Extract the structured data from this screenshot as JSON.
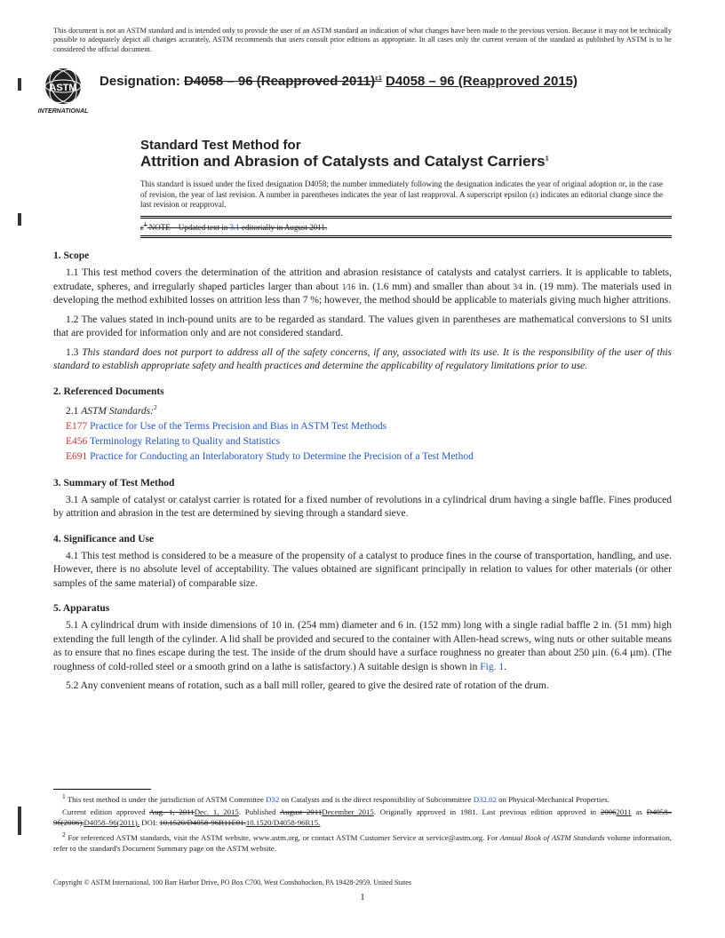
{
  "disclaimer": "This document is not an ASTM standard and is intended only to provide the user of an ASTM standard an indication of what changes have been made to the previous version. Because it may not be technically possible to adequately depict all changes accurately, ASTM recommends that users consult prior editions as appropriate. In all cases only the current version of the standard as published by ASTM is to be considered the official document.",
  "logo_text": "INTERNATIONAL",
  "designation_label": "Designation:",
  "designation_old": "D4058 – 96 (Reapproved 2011)",
  "designation_old_sup": "ε1",
  "designation_new": "D4058 – 96 (Reapproved 2015)",
  "title_pre": "Standard Test Method for",
  "title_main": "Attrition and Abrasion of Catalysts and Catalyst Carriers",
  "title_sup": "1",
  "issue_note": "This standard is issued under the fixed designation D4058; the number immediately following the designation indicates the year of original adoption or, in the case of revision, the year of last revision. A number in parentheses indicates the year of last reapproval. A superscript epsilon (ε) indicates an editorial change since the last revision or reapproval.",
  "editorial_note_pre": "ε",
  "editorial_note_sup": "1",
  "editorial_note_a": " NOTE—Updated text in ",
  "editorial_note_link": "3.1",
  "editorial_note_b": " editorially in August 2011.",
  "sections": {
    "scope": {
      "head": "1. Scope"
    },
    "refdocs": {
      "head": "2. Referenced Documents"
    },
    "summary": {
      "head": "3. Summary of Test Method"
    },
    "sig": {
      "head": "4. Significance and Use"
    },
    "app": {
      "head": "5. Apparatus"
    }
  },
  "p11a": "1.1 This test method covers the determination of the attrition and abrasion resistance of catalysts and catalyst carriers. It is applicable to tablets, extrudate, spheres, and irregularly shaped particles larger than about ",
  "p11_frac1": "1⁄16",
  "p11b": " in. (1.6 mm) and smaller than about ",
  "p11_frac2": "3⁄4",
  "p11c": " in. (19 mm). The materials used in developing the method exhibited losses on attrition less than 7 %; however, the method should be applicable to materials giving much higher attritions.",
  "p12": "1.2 The values stated in inch-pound units are to be regarded as standard. The values given in parentheses are mathematical conversions to SI units that are provided for information only and are not considered standard.",
  "p13": "1.3 This standard does not purport to address all of the safety concerns, if any, associated with its use. It is the responsibility of the user of this standard to establish appropriate safety and health practices and determine the applicability of regulatory limitations prior to use.",
  "p21_label": "2.1 ",
  "p21_italic": "ASTM Standards:",
  "p21_sup": "2",
  "refs": [
    {
      "code": "E177",
      "title": "Practice for Use of the Terms Precision and Bias in ASTM Test Methods"
    },
    {
      "code": "E456",
      "title": "Terminology Relating to Quality and Statistics"
    },
    {
      "code": "E691",
      "title": "Practice for Conducting an Interlaboratory Study to Determine the Precision of a Test Method"
    }
  ],
  "p31": "3.1 A sample of catalyst or catalyst carrier is rotated for a fixed number of revolutions in a cylindrical drum having a single baffle. Fines produced by attrition and abrasion in the test are determined by sieving through a standard sieve.",
  "p41": "4.1 This test method is considered to be a measure of the propensity of a catalyst to produce fines in the course of transportation, handling, and use. However, there is no absolute level of acceptability. The values obtained are significant principally in relation to values for other materials (or other samples of the same material) of comparable size.",
  "p51a": "5.1 A cylindrical drum with inside dimensions of 10 in. (254 mm) diameter and 6 in. (152 mm) long with a single radial baffle 2 in. (51 mm) high extending the full length of the cylinder. A lid shall be provided and secured to the container with Allen-head screws, wing nuts or other suitable means as to ensure that no fines escape during the test. The inside of the drum should have a surface roughness no greater than about 250 µin. (6.4 µm). (The roughness of cold-rolled steel or a smooth grind on a lathe is satisfactory.) A suitable design is shown in ",
  "p51_fig": "Fig. 1",
  "p51b": ".",
  "p52": "5.2 Any convenient means of rotation, such as a ball mill roller, geared to give the desired rate of rotation of the drum.",
  "fn1_sup": "1",
  "fn1_a": " This test method is under the jurisdiction of ASTM Committee ",
  "fn1_l1": "D32",
  "fn1_b": " on Catalysts and is the direct responsibility of Subcommittee ",
  "fn1_l2": "D32.02",
  "fn1_c": " on Physical-Mechanical Properties.",
  "fn1_line2a": "Current edition approved ",
  "fn1_strike1": "Aug. 1, 2011",
  "fn1_new1": "Dec. 1, 2015",
  "fn1_line2b": ". Published ",
  "fn1_strike2": "August 2011",
  "fn1_new2": "December 2015",
  "fn1_line2c": ". Originally approved in 1981. Last previous edition approved in ",
  "fn1_strike3": "2006",
  "fn1_new3": "2011",
  "fn1_line2d": " as ",
  "fn1_strike4": "D4058–96(2006).",
  "fn1_new4": "D4058–96(2011).",
  "fn1_line2e": " DOI: ",
  "fn1_strike5": "10.1520/D4058-96R11E01.",
  "fn1_new5": "10.1520/D4058-96R15.",
  "fn2_sup": "2",
  "fn2": " For referenced ASTM standards, visit the ASTM website, www.astm.org, or contact ASTM Customer Service at service@astm.org. For ",
  "fn2_italic": "Annual Book of ASTM Standards",
  "fn2b": " volume information, refer to the standard's Document Summary page on the ASTM website.",
  "copyright": "Copyright © ASTM International, 100 Barr Harbor Drive, PO Box C700, West Conshohocken, PA 19428-2959. United States",
  "page_num": "1",
  "colors": {
    "ref_code": "#cc3333",
    "ref_link": "#2255cc",
    "text": "#222222",
    "bg": "#ffffff"
  }
}
